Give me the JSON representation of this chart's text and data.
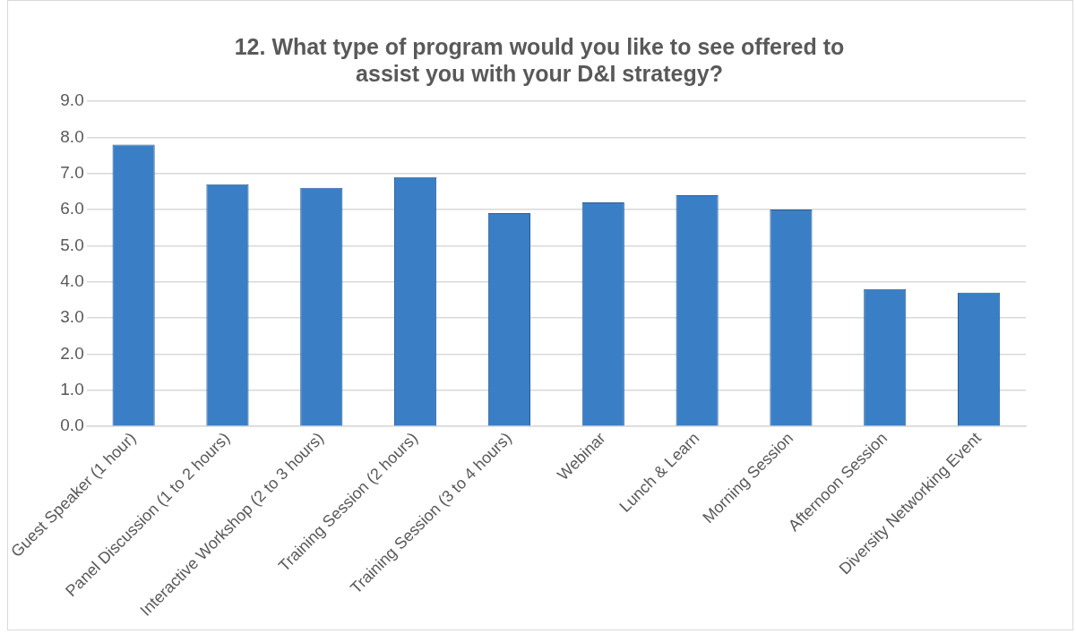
{
  "chart_data": {
    "type": "bar",
    "title": "12. What type of program would you like to see offered to assist you with your D&I strategy?",
    "categories": [
      "Guest Speaker (1 hour)",
      "Panel Discussion (1 to 2 hours)",
      "Interactive Workshop (2 to 3 hours)",
      "Training Session (2 hours)",
      "Training Session (3 to 4 hours)",
      "Webinar",
      "Lunch & Learn",
      "Morning Session",
      "Afternoon Session",
      "Diversity Networking Event"
    ],
    "values": [
      7.8,
      6.7,
      6.6,
      6.9,
      5.9,
      6.2,
      6.4,
      6.0,
      3.8,
      3.7
    ],
    "color": "#3a7fc6",
    "ylim": [
      0,
      9
    ],
    "yticks": [
      {
        "value": 0,
        "label": "0.0"
      },
      {
        "value": 1,
        "label": "1.0"
      },
      {
        "value": 2,
        "label": "2.0"
      },
      {
        "value": 3,
        "label": "3.0"
      },
      {
        "value": 4,
        "label": "4.0"
      },
      {
        "value": 5,
        "label": "5.0"
      },
      {
        "value": 6,
        "label": "6.0"
      },
      {
        "value": 7,
        "label": "7.0"
      },
      {
        "value": 8,
        "label": "8.0"
      },
      {
        "value": 9,
        "label": "9.0"
      }
    ],
    "grid": "y"
  }
}
